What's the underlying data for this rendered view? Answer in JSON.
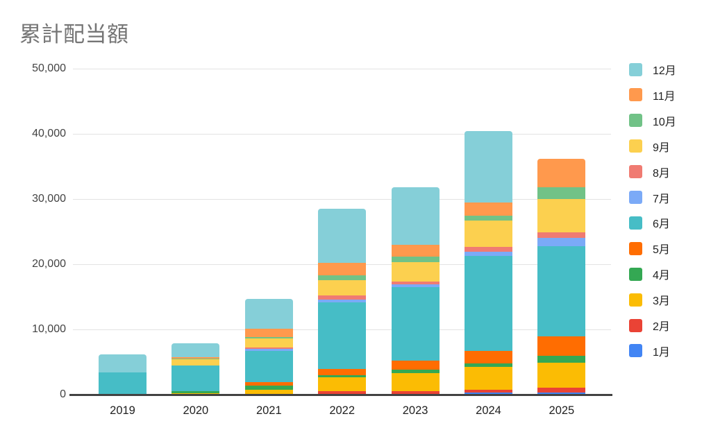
{
  "chart_data": {
    "type": "bar",
    "stacked": true,
    "title": "累計配当額",
    "categories": [
      "2019",
      "2020",
      "2021",
      "2022",
      "2023",
      "2024",
      "2025"
    ],
    "series": [
      {
        "name": "1月",
        "color": "#4285F4",
        "values": [
          0,
          0,
          0,
          0,
          0,
          270,
          270
        ]
      },
      {
        "name": "2月",
        "color": "#EA4335",
        "values": [
          0,
          0,
          0,
          530,
          530,
          480,
          750
        ]
      },
      {
        "name": "3月",
        "color": "#FBBC04",
        "values": [
          0,
          250,
          750,
          2100,
          2770,
          3500,
          3830
        ]
      },
      {
        "name": "4月",
        "color": "#34A853",
        "values": [
          0,
          250,
          650,
          400,
          500,
          500,
          1060
        ]
      },
      {
        "name": "5月",
        "color": "#FF6D01",
        "values": [
          0,
          0,
          550,
          950,
          1380,
          2000,
          2980
        ]
      },
      {
        "name": "6月",
        "color": "#46BDC6",
        "values": [
          3400,
          4000,
          4800,
          10200,
          11280,
          14500,
          13830
        ]
      },
      {
        "name": "7月",
        "color": "#7BAAF7",
        "values": [
          0,
          0,
          250,
          400,
          430,
          640,
          1280
        ]
      },
      {
        "name": "8月",
        "color": "#F07B72",
        "values": [
          0,
          0,
          250,
          600,
          500,
          750,
          850
        ]
      },
      {
        "name": "9月",
        "color": "#FCD04F",
        "values": [
          0,
          900,
          1350,
          2350,
          2980,
          4050,
          5100
        ]
      },
      {
        "name": "10月",
        "color": "#71C287",
        "values": [
          0,
          100,
          250,
          750,
          750,
          750,
          1810
        ]
      },
      {
        "name": "11月",
        "color": "#FF994D",
        "values": [
          0,
          250,
          1300,
          1900,
          1810,
          2000,
          4360
        ]
      },
      {
        "name": "12月",
        "color": "#85CFD8",
        "values": [
          2800,
          2150,
          4550,
          8300,
          8830,
          11000,
          0
        ]
      }
    ],
    "xlabel": "",
    "ylabel": "",
    "ylim": [
      0,
      50000
    ],
    "ytick_step": 10000,
    "ytick_labels": [
      "0",
      "10,000",
      "20,000",
      "30,000",
      "40,000",
      "50,000"
    ],
    "grid": true,
    "legend_position": "right",
    "legend_order": "reversed"
  }
}
